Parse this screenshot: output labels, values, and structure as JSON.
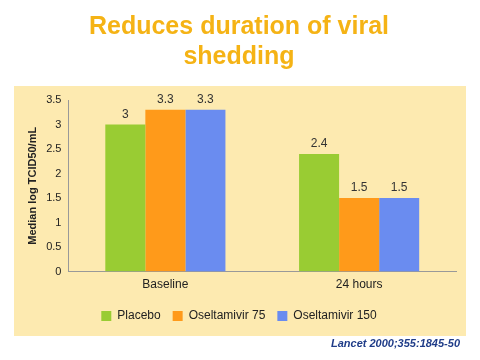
{
  "chart_data": {
    "type": "bar",
    "title": [
      "Reduces duration of viral",
      "shedding"
    ],
    "y_label": "Median log TCID50/mL",
    "source": "Lancet 2000;355:1845-50",
    "categories": [
      "Baseline",
      "24 hours"
    ],
    "series": [
      {
        "name": "Placebo",
        "color": "#99cc33",
        "values": [
          3,
          2.4
        ]
      },
      {
        "name": "Oseltamivir 75",
        "color": "#ff9a1a",
        "values": [
          3.3,
          1.5
        ]
      },
      {
        "name": "Oseltamivir 150",
        "color": "#6a8cf0",
        "values": [
          3.3,
          1.5
        ]
      }
    ],
    "ylim": [
      0,
      3.5
    ],
    "yticks": [
      0,
      0.5,
      1,
      1.5,
      2,
      2.5,
      3,
      3.5
    ],
    "grid": false,
    "legend": "bottom",
    "data_labels": true
  }
}
